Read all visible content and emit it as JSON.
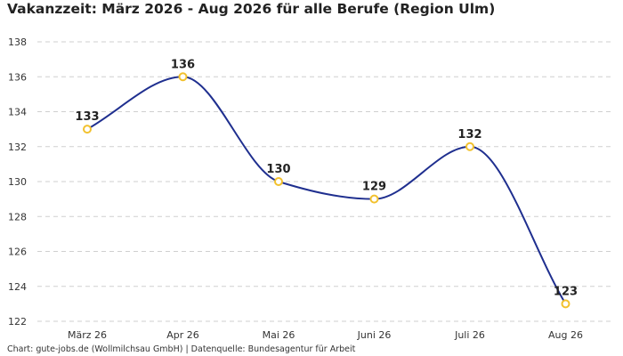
{
  "title": "Vakanzzeit: März 2026 - Aug 2026 für alle Berufe (Region Ulm)",
  "footer": "Chart: gute-jobs.de (Wollmilchsau GmbH) | Datenquelle: Bundesagentur für Arbeit",
  "colors": {
    "line": "#1f2f8f",
    "marker_stroke": "#f2c12e",
    "marker_fill": "#ffffff",
    "grid": "#cfcfcf"
  },
  "chart_data": {
    "type": "line",
    "title": "Vakanzzeit: März 2026 - Aug 2026 für alle Berufe (Region Ulm)",
    "xlabel": "",
    "ylabel": "",
    "categories": [
      "März 26",
      "Apr 26",
      "Mai 26",
      "Juni 26",
      "Juli 26",
      "Aug 26"
    ],
    "series": [
      {
        "values": [
          133,
          136,
          130,
          129,
          132,
          123
        ]
      }
    ],
    "ylim": [
      122,
      138
    ],
    "yticks": [
      122,
      124,
      126,
      128,
      130,
      132,
      134,
      136,
      138
    ],
    "grid": true,
    "smooth": true,
    "data_labels": true
  }
}
